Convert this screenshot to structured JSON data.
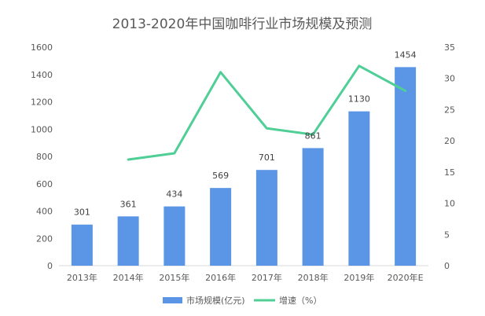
{
  "chart_data": {
    "type": "bar",
    "title": "2013-2020年中国咖啡行业市场规模及预测",
    "categories": [
      "2013年",
      "2014年",
      "2015年",
      "2016年",
      "2017年",
      "2018年",
      "2019年",
      "2020年E"
    ],
    "series": [
      {
        "name": "市场规模(亿元)",
        "type": "bar",
        "axis": "left",
        "color": "#5b96e6",
        "values": [
          301,
          361,
          434,
          569,
          701,
          861,
          1130,
          1454
        ],
        "labels": [
          "301",
          "361",
          "434",
          "569",
          "701",
          "861",
          "1130",
          "1454"
        ]
      },
      {
        "name": "增速（%）",
        "type": "line",
        "axis": "right",
        "color": "#4fcf96",
        "values": [
          null,
          17,
          18,
          31,
          22,
          21,
          32,
          28
        ]
      }
    ],
    "y_left": {
      "min": 0,
      "max": 1600,
      "ticks": [
        "0",
        "200",
        "400",
        "600",
        "800",
        "1000",
        "1200",
        "1400",
        "1600"
      ]
    },
    "y_right": {
      "min": 0,
      "max": 35,
      "ticks": [
        "0",
        "5",
        "10",
        "15",
        "20",
        "25",
        "30",
        "35"
      ]
    },
    "grid": false,
    "legend": "bottom"
  }
}
